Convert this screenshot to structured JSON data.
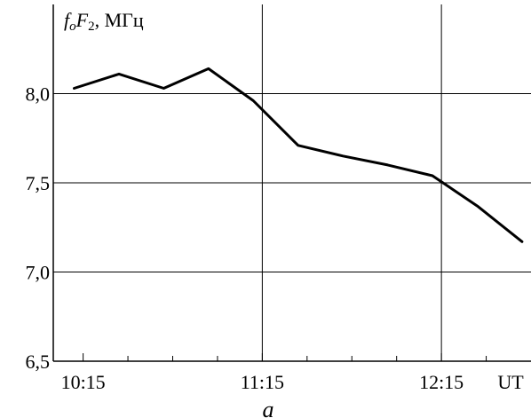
{
  "chart_data": {
    "type": "line",
    "ylabel": {
      "f": "f",
      "o": "o",
      "F": "F",
      "two": "2",
      "units": ", МГц"
    },
    "xlabel": "UT",
    "panel_label": "а",
    "xlim": [
      "10:05",
      "12:45"
    ],
    "ylim": [
      6.5,
      8.5
    ],
    "x_ticks": [
      "10:15",
      "11:15",
      "12:15"
    ],
    "x_tick_minutes": [
      615,
      675,
      735
    ],
    "y_ticks": [
      6.5,
      7.0,
      7.5,
      8.0
    ],
    "y_tick_labels": [
      "6,5",
      "7,0",
      "7,5",
      "8,0"
    ],
    "grid": {
      "horizontal": [
        7.0,
        7.5,
        8.0
      ],
      "vertical": [
        "11:15",
        "12:15"
      ]
    },
    "series": [
      {
        "x": [
          "10:12",
          "10:27",
          "10:42",
          "10:57",
          "11:12",
          "11:27",
          "11:42",
          "11:57",
          "12:12",
          "12:27",
          "12:42"
        ],
        "values": [
          8.03,
          8.11,
          8.03,
          8.14,
          7.96,
          7.71,
          7.65,
          7.6,
          7.54,
          7.37,
          7.17
        ]
      }
    ]
  }
}
